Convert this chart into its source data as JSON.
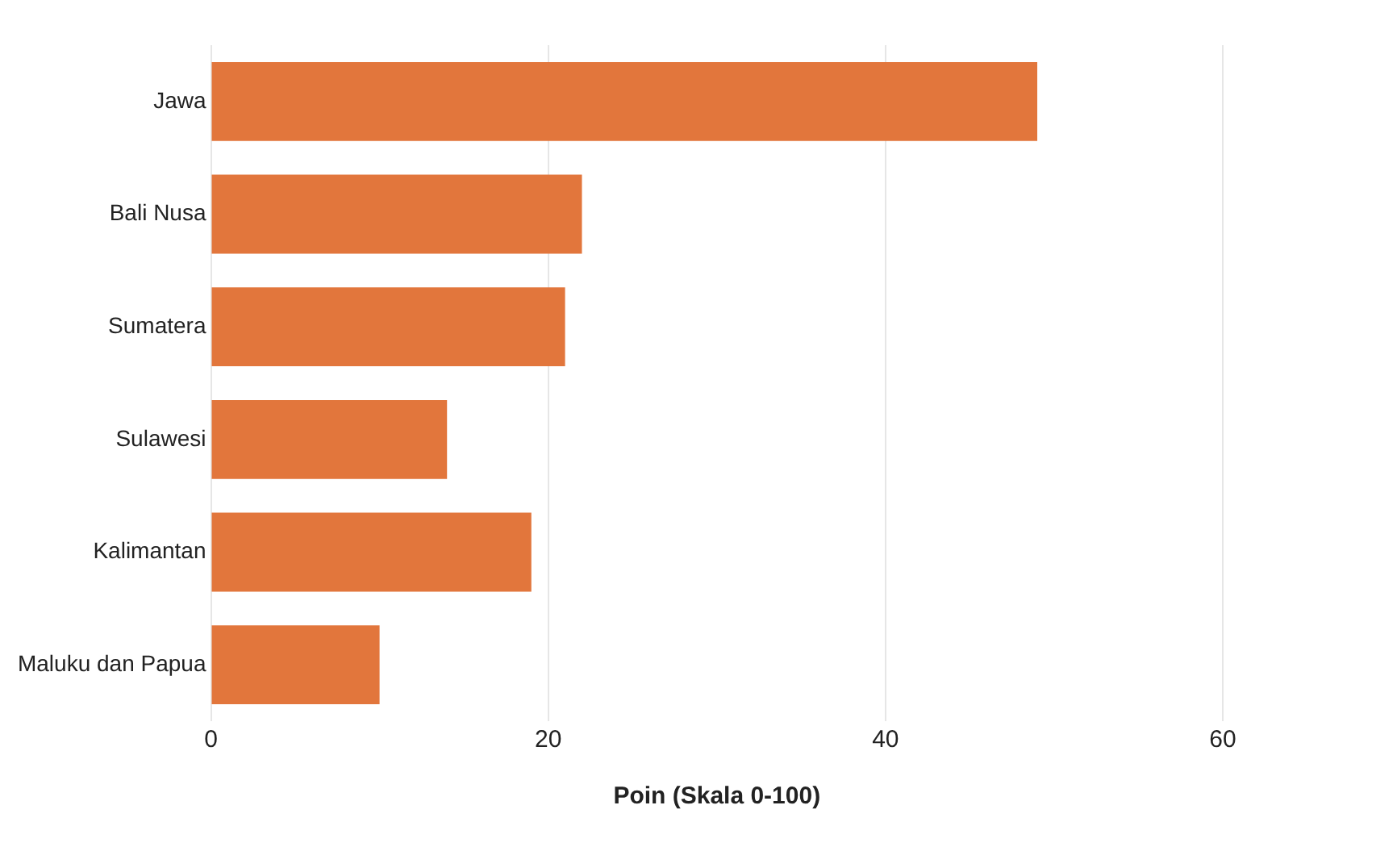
{
  "chart_data": {
    "type": "bar",
    "orientation": "horizontal",
    "xlabel": "Poin (Skala 0-100)",
    "categories": [
      "Jawa",
      "Bali Nusa",
      "Sumatera",
      "Sulawesi",
      "Kalimantan",
      "Maluku dan Papua"
    ],
    "values": [
      49,
      22,
      21,
      14,
      19,
      10
    ],
    "color": "#e2763c",
    "xlim": [
      0,
      60
    ],
    "xticks": [
      0,
      20,
      40,
      60
    ],
    "grid": "x"
  }
}
